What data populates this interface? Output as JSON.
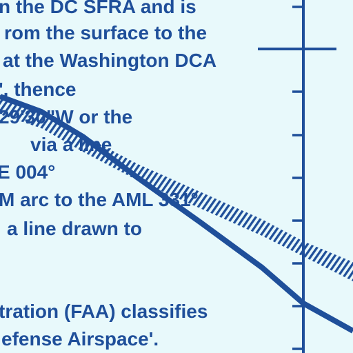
{
  "map": {
    "lines": [
      "n the DC SFRA and is",
      "rom the surface to the",
      "at the Washington DCA",
      "', thence",
      "29'30\"W or the",
      "via a line",
      "E 004°",
      "M arc to the AML 331°",
      "a line drawn to",
      "tration (FAA) classifies",
      "efense Airspace'."
    ]
  },
  "colors": {
    "background": "#e8f9fb",
    "ink": "#1f4f9a"
  }
}
